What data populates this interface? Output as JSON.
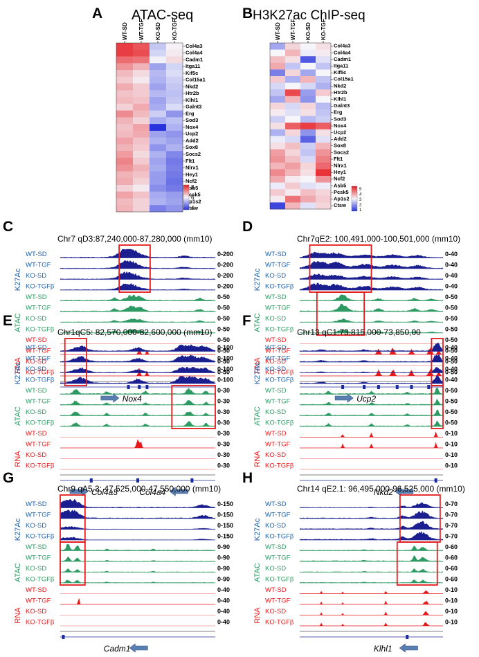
{
  "panel_letters": [
    "A",
    "B",
    "C",
    "D",
    "E",
    "F",
    "G",
    "H"
  ],
  "heatmap_a": {
    "title": "ATAC-seq",
    "columns": [
      "WT-SD",
      "WT-TGF",
      "KO-SD",
      "KO-TGF"
    ],
    "genes": [
      "Col4a3",
      "Col4a4",
      "Cadm1",
      "Itga11",
      "Kif5c",
      "Col15a1",
      "Nkd2",
      "Htr2b",
      "Klhl1",
      "Galnt3",
      "Erg",
      "Sod3",
      "Nox4",
      "Ucp2",
      "Add2",
      "Sox8",
      "Socs2",
      "Flt1",
      "Nlrx1",
      "Hey1",
      "Ncf2",
      "Asb5",
      "Pcsk5",
      "Ap1s2",
      "Ctsw"
    ],
    "legend": [
      "8",
      "6",
      "4"
    ],
    "values": [
      [
        8.6,
        8.3,
        5.6,
        6.3
      ],
      [
        8.6,
        8.4,
        5.8,
        6.4
      ],
      [
        8.0,
        7.9,
        6.2,
        6.6
      ],
      [
        7.5,
        7.1,
        5.1,
        5.8
      ],
      [
        7.0,
        6.6,
        5.4,
        5.9
      ],
      [
        6.8,
        6.4,
        5.3,
        5.7
      ],
      [
        7.2,
        6.8,
        5.1,
        5.6
      ],
      [
        6.9,
        6.8,
        5.4,
        5.5
      ],
      [
        7.0,
        6.9,
        5.1,
        5.6
      ],
      [
        6.7,
        7.2,
        5.2,
        5.9
      ],
      [
        7.6,
        7.0,
        5.7,
        4.9
      ],
      [
        7.1,
        6.7,
        5.2,
        5.5
      ],
      [
        6.9,
        7.3,
        3.3,
        5.3
      ],
      [
        7.0,
        7.2,
        5.1,
        4.9
      ],
      [
        7.3,
        6.9,
        5.3,
        5.1
      ],
      [
        7.1,
        6.8,
        4.9,
        5.3
      ],
      [
        7.4,
        6.6,
        5.3,
        4.7
      ],
      [
        7.7,
        6.8,
        5.1,
        4.5
      ],
      [
        7.5,
        7.1,
        5.2,
        4.6
      ],
      [
        7.1,
        6.9,
        5.0,
        4.5
      ],
      [
        7.2,
        6.7,
        5.0,
        4.4
      ],
      [
        6.7,
        6.4,
        4.8,
        4.5
      ],
      [
        7.3,
        6.9,
        5.2,
        5.0
      ],
      [
        7.0,
        6.7,
        5.3,
        5.1
      ],
      [
        7.1,
        6.7,
        4.6,
        4.9
      ]
    ]
  },
  "heatmap_b": {
    "title": "H3K27ac ChIP-seq",
    "columns": [
      "WT-SD",
      "WT-TGF",
      "KO-SD",
      "KO-TGF"
    ],
    "genes": [
      "Col4a3",
      "Col4a4",
      "Cadm1",
      "Itga11",
      "Kif5c",
      "Col15a1",
      "Nkd2",
      "Htr2b",
      "Klhl1",
      "Galnt3",
      "Erg",
      "Sod3",
      "Nox4",
      "Ucp2",
      "Add2",
      "Sox8",
      "Socs2",
      "Flt1",
      "Nlrx1",
      "Hey1",
      "Ncf2",
      "Asb5",
      "Pcsk5",
      "Ap1s2",
      "Ctsw"
    ],
    "legend": [
      "5",
      "4",
      "3",
      "2",
      "1"
    ],
    "values": [
      [
        2.2,
        3.3,
        3.0,
        3.2
      ],
      [
        3.0,
        3.6,
        2.9,
        3.1
      ],
      [
        3.5,
        3.2,
        1.4,
        2.8
      ],
      [
        3.7,
        2.5,
        3.0,
        2.5
      ],
      [
        1.8,
        3.3,
        2.2,
        3.0
      ],
      [
        3.4,
        2.3,
        3.6,
        2.5
      ],
      [
        2.7,
        3.0,
        2.7,
        2.3
      ],
      [
        2.5,
        4.6,
        2.1,
        3.4
      ],
      [
        2.2,
        3.6,
        2.0,
        3.0
      ],
      [
        3.3,
        2.7,
        3.3,
        2.4
      ],
      [
        3.1,
        2.8,
        3.2,
        2.5
      ],
      [
        2.6,
        3.0,
        2.4,
        2.6
      ],
      [
        3.2,
        4.4,
        4.7,
        4.4
      ],
      [
        2.3,
        3.3,
        2.0,
        3.2
      ],
      [
        2.9,
        2.7,
        1.5,
        2.8
      ],
      [
        3.2,
        3.5,
        2.6,
        3.6
      ],
      [
        3.8,
        3.3,
        2.5,
        3.9
      ],
      [
        3.9,
        3.5,
        2.7,
        4.1
      ],
      [
        3.6,
        3.8,
        3.3,
        4.3
      ],
      [
        4.0,
        3.6,
        3.2,
        4.8
      ],
      [
        3.7,
        3.1,
        3.0,
        3.9
      ],
      [
        2.9,
        3.4,
        2.8,
        2.9
      ],
      [
        3.4,
        3.1,
        3.5,
        3.3
      ],
      [
        3.1,
        4.2,
        3.7,
        3.4
      ],
      [
        1.2,
        3.6,
        2.8,
        3.3
      ]
    ]
  },
  "track_panels": [
    {
      "letter": "C",
      "locus": "Chr7 qD3:87,240,000-87,280,000 (mm10)",
      "gene_labels": [
        "Nox4"
      ],
      "gene_dirs": [
        "right"
      ],
      "k27_label": "K27Ac",
      "atac_label": "ATAC",
      "rna_label": "RNA",
      "k27_samples": [
        "WT-SD",
        "WT-TGF",
        "KO-SD",
        "KO-TGFβ"
      ],
      "atac_samples": [
        "WT-SD",
        "WT-TGF",
        "KO-SD",
        "KO-TGFβ"
      ],
      "rna_samples": [
        "WT-SD",
        "WT-TGF",
        "KO-SD",
        "KO-TGFβ"
      ],
      "k27_ranges": [
        "0-200",
        "0-200",
        "0-200",
        "0-200"
      ],
      "atac_ranges": [
        "0-50",
        "0-50",
        "0-50",
        "0-50"
      ],
      "rna_ranges": [
        "0-50",
        "0-50",
        "0-50",
        "0-50"
      ],
      "k27_peaks": [
        [
          0.45,
          0.055,
          0.9
        ],
        [
          0.41,
          0.03,
          0.3
        ],
        [
          0.8,
          0.03,
          0.15
        ]
      ],
      "atac_peaks": [
        [
          0.46,
          0.03,
          0.55
        ],
        [
          0.52,
          0.02,
          0.35
        ],
        [
          0.35,
          0.015,
          0.3
        ],
        [
          0.9,
          0.015,
          0.25
        ]
      ],
      "rna_peaks": [
        [
          0.51,
          0.006,
          0.9
        ],
        [
          0.56,
          0.005,
          0.6
        ]
      ],
      "rna_active": [
        false,
        true,
        false,
        true
      ],
      "k27_strength": [
        1.0,
        0.75,
        0.7,
        0.6
      ],
      "atac_strength": [
        1.0,
        0.9,
        0.6,
        0.6
      ],
      "boxes": [
        [
          0.38,
          0.58
        ]
      ],
      "exons": [
        0.44,
        0.51,
        0.56
      ]
    },
    {
      "letter": "D",
      "locus": "Chr7qE2: 100,491,000-100,501,000 (mm10)",
      "gene_labels": [
        "Ucp2"
      ],
      "gene_dirs": [
        "right"
      ],
      "k27_label": "K27Ac",
      "atac_label": "ATAC",
      "rna_label": "RNA",
      "k27_samples": [
        "WT-SD",
        "WT-TGF",
        "KO-SD",
        "KO-TGFβ"
      ],
      "atac_samples": [
        "WT-SD",
        "WT-TGF",
        "KO-SD",
        "KO-TGFβ"
      ],
      "rna_samples": [
        "WT-SD",
        "WT-TGF",
        "KO-SD",
        "KO-TGFβ"
      ],
      "k27_ranges": [
        "0-40",
        "0-40",
        "0-40",
        "0-40"
      ],
      "atac_ranges": [
        "0-50",
        "0-50",
        "0-50",
        "0-50"
      ],
      "rna_ranges": [
        "0-50",
        "0-50",
        "0-50",
        "0-50"
      ],
      "k27_peaks": [
        [
          0.12,
          0.05,
          0.7
        ],
        [
          0.25,
          0.05,
          0.6
        ],
        [
          0.45,
          0.06,
          0.4
        ],
        [
          0.65,
          0.05,
          0.35
        ],
        [
          0.82,
          0.04,
          0.3
        ]
      ],
      "atac_peaks": [
        [
          0.3,
          0.03,
          0.7
        ],
        [
          0.55,
          0.02,
          0.25
        ],
        [
          0.8,
          0.02,
          0.25
        ],
        [
          0.92,
          0.02,
          0.2
        ]
      ],
      "rna_peaks": [
        [
          0.55,
          0.01,
          0.6
        ],
        [
          0.65,
          0.01,
          0.7
        ],
        [
          0.78,
          0.01,
          0.55
        ],
        [
          0.91,
          0.01,
          0.75
        ],
        [
          0.97,
          0.008,
          0.5
        ]
      ],
      "rna_active": [
        false,
        true,
        false,
        true
      ],
      "k27_strength": [
        0.8,
        1.0,
        0.7,
        0.9
      ],
      "atac_strength": [
        0.8,
        1.0,
        0.5,
        0.5
      ],
      "boxes": [
        [
          0.07,
          0.5
        ],
        [
          0.12,
          0.45
        ]
      ],
      "exons": [
        0.3,
        0.45,
        0.55,
        0.68,
        0.78,
        0.9
      ]
    },
    {
      "letter": "E",
      "locus": "Chr1qC5: 82,570,000-82,600,000 (mm10)",
      "gene_labels": [
        "Col4a3",
        "Col4a4"
      ],
      "gene_dirs": [
        "right",
        "left"
      ],
      "k27_label": "K27Ac",
      "atac_label": "ATAC",
      "rna_label": "RNA",
      "k27_samples": [
        "WT-SD",
        "WT-TGF",
        "KO-SD",
        "KO-TGFβ"
      ],
      "atac_samples": [
        "WT-SD",
        "WT-TGF",
        "KO-SD",
        "KO-TGFβ"
      ],
      "rna_samples": [
        "WT-SD",
        "WT-TGF",
        "KO-SD",
        "KO-TGFβ"
      ],
      "k27_ranges": [
        "0-100",
        "0-100",
        "0-100",
        "0-100"
      ],
      "atac_ranges": [
        "0-30",
        "0-30",
        "0-30",
        "0-30"
      ],
      "rna_ranges": [
        "0-30",
        "0-30",
        "0-30",
        "0-30"
      ],
      "k27_peaks": [
        [
          0.13,
          0.04,
          0.6
        ],
        [
          0.5,
          0.03,
          0.4
        ],
        [
          0.78,
          0.03,
          0.6
        ],
        [
          0.85,
          0.03,
          0.65
        ],
        [
          0.93,
          0.03,
          0.55
        ]
      ],
      "atac_peaks": [
        [
          0.1,
          0.015,
          0.5
        ],
        [
          0.3,
          0.01,
          0.25
        ],
        [
          0.55,
          0.01,
          0.3
        ],
        [
          0.83,
          0.015,
          0.6
        ],
        [
          0.94,
          0.01,
          0.35
        ]
      ],
      "rna_peaks": [
        [
          0.5,
          0.008,
          0.9
        ],
        [
          0.52,
          0.006,
          0.6
        ]
      ],
      "rna_active": [
        false,
        true,
        false,
        false
      ],
      "k27_strength": [
        0.9,
        0.9,
        0.8,
        1.0
      ],
      "atac_strength": [
        1.0,
        0.8,
        0.8,
        0.8
      ],
      "boxes": [
        [
          0.03,
          0.17
        ],
        [
          0.72,
          1.0
        ]
      ],
      "exons": [
        0.2,
        0.5,
        0.85
      ]
    },
    {
      "letter": "F",
      "locus": "Chr13 qC1:73,815,000-73,850,00",
      "gene_labels": [
        "Nkd2"
      ],
      "gene_dirs": [
        "left"
      ],
      "k27_label": "K27Ac",
      "atac_label": "ATAC",
      "rna_label": "RNA",
      "k27_samples": [
        "WT-SD",
        "WT-TGF",
        "KO-SD",
        "KO-TGFβ"
      ],
      "atac_samples": [
        "WT-SD",
        "WT-TGF",
        "KO-SD",
        "KO-TGFβ"
      ],
      "rna_samples": [
        "WT-SD",
        "WT-TGF",
        "KO-SD",
        "KO-TGFβ"
      ],
      "k27_ranges": [
        "0-40",
        "0-40",
        "0-40",
        "0-40"
      ],
      "atac_ranges": [
        "0-50",
        "0-50",
        "0-50",
        "0-50"
      ],
      "rna_ranges": [
        "0-10",
        "0-10",
        "0-10",
        "0-10"
      ],
      "k27_peaks": [
        [
          0.96,
          0.02,
          0.95
        ],
        [
          0.15,
          0.02,
          0.15
        ],
        [
          0.45,
          0.02,
          0.12
        ]
      ],
      "atac_peaks": [
        [
          0.96,
          0.01,
          0.7
        ],
        [
          0.2,
          0.01,
          0.3
        ],
        [
          0.5,
          0.01,
          0.25
        ],
        [
          0.75,
          0.01,
          0.2
        ]
      ],
      "rna_peaks": [
        [
          0.3,
          0.005,
          0.4
        ],
        [
          0.5,
          0.005,
          0.5
        ],
        [
          0.95,
          0.005,
          0.7
        ]
      ],
      "rna_active": [
        true,
        true,
        false,
        false
      ],
      "k27_strength": [
        1.0,
        0.9,
        0.6,
        0.8
      ],
      "atac_strength": [
        1.0,
        0.9,
        0.9,
        0.9
      ],
      "boxes": [
        [
          0.92,
          1.0
        ],
        [
          0.92,
          1.0
        ]
      ],
      "exons": [
        0.95
      ]
    },
    {
      "letter": "G",
      "locus": "Chr9 qA5.3: 47,525,000-47,550,000 (mm10)",
      "gene_labels": [
        "Cadm1"
      ],
      "gene_dirs": [
        "left"
      ],
      "k27_label": "K27Ac",
      "atac_label": "ATAC",
      "rna_label": "RNA",
      "k27_samples": [
        "WT-SD",
        "WT-TGF",
        "KO-SD",
        "KO-TGFβ"
      ],
      "atac_samples": [
        "WT-SD",
        "WT-TGF",
        "KO-SD",
        "KO-TGFβ"
      ],
      "rna_samples": [
        "WT-SD",
        "WT-TGF",
        "KO-SD",
        "KO-TGFβ"
      ],
      "k27_ranges": [
        "0-150",
        "0-150",
        "0-150",
        "0-150"
      ],
      "atac_ranges": [
        "0-90",
        "0-90",
        "0-90",
        "0-90"
      ],
      "rna_ranges": [
        "0-40",
        "0-40",
        "0-40",
        "0-40"
      ],
      "k27_peaks": [
        [
          0.08,
          0.04,
          0.85
        ],
        [
          0.02,
          0.02,
          0.5
        ],
        [
          0.92,
          0.03,
          0.3
        ]
      ],
      "atac_peaks": [
        [
          0.05,
          0.01,
          0.7
        ],
        [
          0.11,
          0.01,
          0.5
        ],
        [
          0.3,
          0.008,
          0.15
        ],
        [
          0.6,
          0.008,
          0.15
        ]
      ],
      "rna_peaks": [
        [
          0.12,
          0.004,
          0.9
        ]
      ],
      "rna_active": [
        false,
        true,
        false,
        false
      ],
      "k27_strength": [
        1.0,
        1.0,
        0.3,
        0.3
      ],
      "atac_strength": [
        1.0,
        0.7,
        0.5,
        0.5
      ],
      "boxes": [
        [
          0.0,
          0.16
        ],
        [
          0.0,
          0.16
        ]
      ],
      "exons": [
        0.02
      ]
    },
    {
      "letter": "H",
      "locus": "Chr14 qE2.1: 96,495,000-96,525,000 (mm10)",
      "gene_labels": [
        "Klhl1"
      ],
      "gene_dirs": [
        "left"
      ],
      "k27_label": "K27Ac",
      "atac_label": "ATAC",
      "rna_label": "RNA",
      "k27_samples": [
        "WT-SD",
        "WT-TGF",
        "KO-SD",
        "KO-TGFβ"
      ],
      "atac_samples": [
        "WT-SD",
        "WT-TGF",
        "KO-SD",
        "KO-TGFβ"
      ],
      "rna_samples": [
        "WT-SD",
        "WT-TGF",
        "KO-SD",
        "KO-TGFβ"
      ],
      "k27_ranges": [
        "0-70",
        "0-70",
        "0-70",
        "0-70"
      ],
      "atac_ranges": [
        "0-60",
        "0-60",
        "0-60",
        "0-60"
      ],
      "rna_ranges": [
        "0-10",
        "0-10",
        "0-10",
        "0-10"
      ],
      "k27_peaks": [
        [
          0.85,
          0.04,
          0.8
        ],
        [
          0.72,
          0.02,
          0.3
        ],
        [
          0.5,
          0.015,
          0.1
        ]
      ],
      "atac_peaks": [
        [
          0.8,
          0.01,
          0.55
        ],
        [
          0.86,
          0.015,
          0.45
        ],
        [
          0.45,
          0.01,
          0.1
        ]
      ],
      "rna_peaks": [
        [
          0.15,
          0.004,
          0.3
        ],
        [
          0.3,
          0.004,
          0.2
        ],
        [
          0.6,
          0.005,
          0.35
        ],
        [
          0.88,
          0.01,
          0.4
        ]
      ],
      "rna_active": [
        true,
        true,
        true,
        true
      ],
      "k27_strength": [
        0.6,
        0.9,
        0.9,
        1.0
      ],
      "atac_strength": [
        0.8,
        1.0,
        0.6,
        0.6
      ],
      "boxes": [
        [
          0.7,
          0.98
        ],
        [
          0.68,
          0.96
        ]
      ],
      "exons": [
        0.75
      ]
    }
  ],
  "colors": {
    "k27": "#1b1e8f",
    "atac": "#2e9a63",
    "rna": "#e41a1c",
    "box": "#e41a1c",
    "label_blue": "#1f5fa8",
    "label_green": "#2e9a63",
    "label_red": "#e41a1c",
    "arrow": "#5a7fb3"
  }
}
